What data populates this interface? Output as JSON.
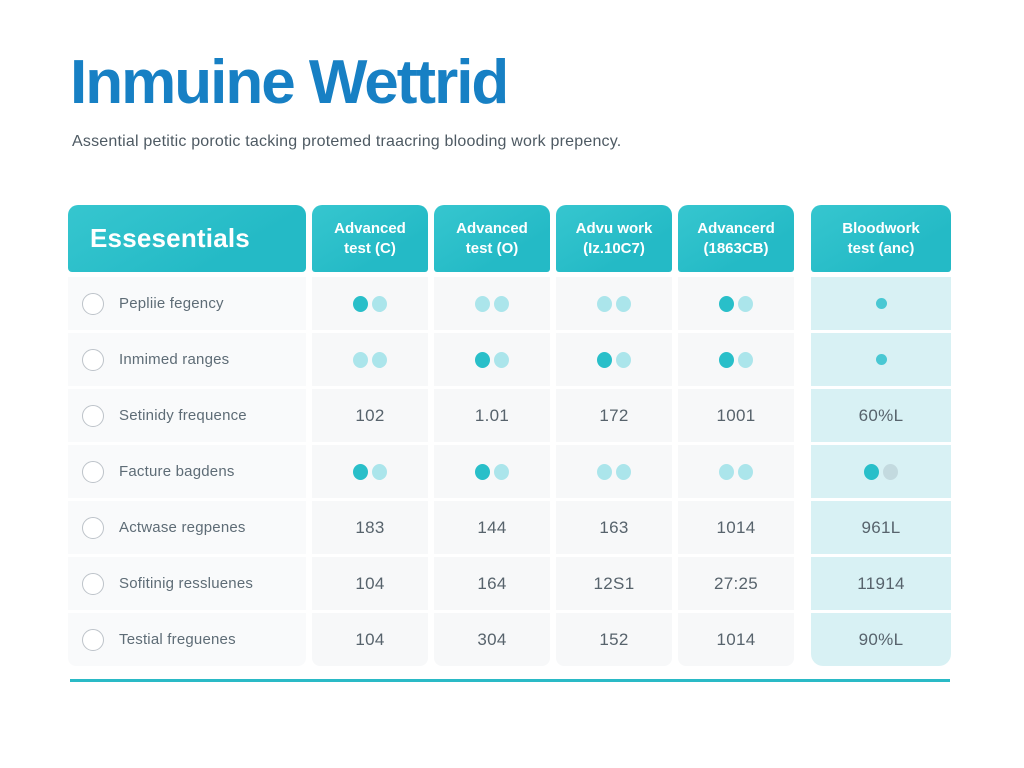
{
  "page": {
    "title": "Inmuine Wettrid",
    "subtitle": "Assential petitic porotic tacking protemed traacring blooding work prepency."
  },
  "colors": {
    "title_blue": "#1780C4",
    "header_teal": "#29BFC9",
    "dot_filled": "#29BFC9",
    "dot_light": "#ABE5EB",
    "dot_muted": "#C3DADF",
    "single_dot": "#49C8D3",
    "highlight_column_bg": "#D8F1F4",
    "row_bg": "#F7F8F9",
    "divider": "#2ABAC6"
  },
  "table": {
    "feature_column_header": "Essesentials",
    "columns": [
      {
        "label": "Advanced test (C)"
      },
      {
        "label": "Advanced test (O)"
      },
      {
        "label": "Advu work (Iz.10C7)"
      },
      {
        "label": "Advancerd (1863CB)"
      },
      {
        "label": "Bloodwork test (anc)"
      }
    ],
    "rows": [
      {
        "label": "Pepliie fegency",
        "cells": [
          {
            "dots": [
              "on",
              "off"
            ]
          },
          {
            "dots": [
              "off",
              "off"
            ]
          },
          {
            "dots": [
              "off",
              "off"
            ]
          },
          {
            "dots": [
              "on",
              "off"
            ]
          },
          {
            "dot": "single"
          }
        ]
      },
      {
        "label": "Inmimed ranges",
        "cells": [
          {
            "dots": [
              "off",
              "off"
            ]
          },
          {
            "dots": [
              "on",
              "off"
            ]
          },
          {
            "dots": [
              "on",
              "off"
            ]
          },
          {
            "dots": [
              "on",
              "off"
            ]
          },
          {
            "dot": "single"
          }
        ]
      },
      {
        "label": "Setinidy frequence",
        "cells": [
          {
            "value": "102"
          },
          {
            "value": "1.01"
          },
          {
            "value": "172"
          },
          {
            "value": "1001"
          },
          {
            "value": "60%L"
          }
        ]
      },
      {
        "label": "Facture bagdens",
        "cells": [
          {
            "dots": [
              "on",
              "off"
            ]
          },
          {
            "dots": [
              "on",
              "off"
            ]
          },
          {
            "dots": [
              "off",
              "off"
            ]
          },
          {
            "dots": [
              "off",
              "off"
            ]
          },
          {
            "dots": [
              "on",
              "muted"
            ]
          }
        ]
      },
      {
        "label": "Actwase regpenes",
        "cells": [
          {
            "value": "183"
          },
          {
            "value": "144"
          },
          {
            "value": "163"
          },
          {
            "value": "1014"
          },
          {
            "value": "961L"
          }
        ]
      },
      {
        "label": "Sofitinig ressluenes",
        "cells": [
          {
            "value": "104"
          },
          {
            "value": "164"
          },
          {
            "value": "12S1"
          },
          {
            "value": "27:25"
          },
          {
            "value": "11914"
          }
        ]
      },
      {
        "label": "Testial freguenes",
        "cells": [
          {
            "value": "104"
          },
          {
            "value": "304"
          },
          {
            "value": "152"
          },
          {
            "value": "1014"
          },
          {
            "value": "90%L"
          }
        ]
      }
    ]
  }
}
